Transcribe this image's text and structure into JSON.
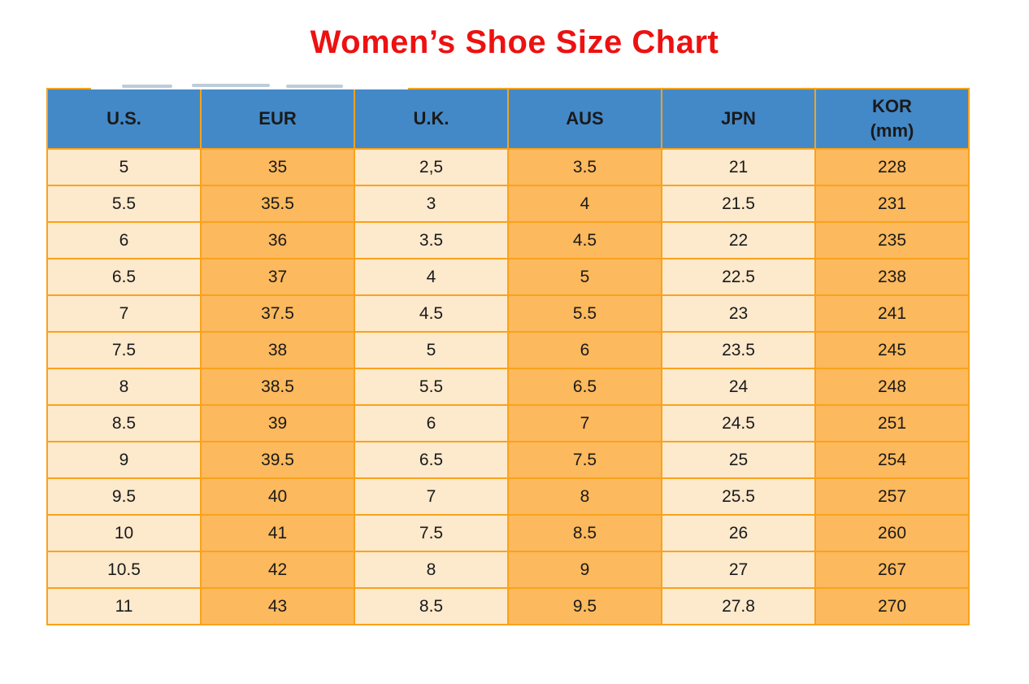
{
  "title": {
    "text": "Women’s Shoe Size Chart"
  },
  "colors": {
    "border": "#F9A21C",
    "header_bg": "#4389C8",
    "cell_light": "#FDE9CC",
    "cell_orange": "#FCB95D",
    "text": "#1A1A1A",
    "title": "#ED1111"
  },
  "table": {
    "columns": [
      {
        "key": "us",
        "label": "U.S."
      },
      {
        "key": "eur",
        "label": "EUR"
      },
      {
        "key": "uk",
        "label": "U.K."
      },
      {
        "key": "aus",
        "label": "AUS"
      },
      {
        "key": "jpn",
        "label": "JPN"
      },
      {
        "key": "kor",
        "label": "KOR",
        "sublabel": "(mm)"
      }
    ],
    "rows": [
      [
        "5",
        "35",
        "2,5",
        "3.5",
        "21",
        "228"
      ],
      [
        "5.5",
        "35.5",
        "3",
        "4",
        "21.5",
        "231"
      ],
      [
        "6",
        "36",
        "3.5",
        "4.5",
        "22",
        "235"
      ],
      [
        "6.5",
        "37",
        "4",
        "5",
        "22.5",
        "238"
      ],
      [
        "7",
        "37.5",
        "4.5",
        "5.5",
        "23",
        "241"
      ],
      [
        "7.5",
        "38",
        "5",
        "6",
        "23.5",
        "245"
      ],
      [
        "8",
        "38.5",
        "5.5",
        "6.5",
        "24",
        "248"
      ],
      [
        "8.5",
        "39",
        "6",
        "7",
        "24.5",
        "251"
      ],
      [
        "9",
        "39.5",
        "6.5",
        "7.5",
        "25",
        "254"
      ],
      [
        "9.5",
        "40",
        "7",
        "8",
        "25.5",
        "257"
      ],
      [
        "10",
        "41",
        "7.5",
        "8.5",
        "26",
        "260"
      ],
      [
        "10.5",
        "42",
        "8",
        "9",
        "27",
        "267"
      ],
      [
        "11",
        "43",
        "8.5",
        "9.5",
        "27.8",
        "270"
      ]
    ]
  },
  "chart_data": {
    "type": "table",
    "title": "Women’s Shoe Size Chart",
    "columns": [
      "U.S.",
      "EUR",
      "U.K.",
      "AUS",
      "JPN",
      "KOR (mm)"
    ],
    "rows": [
      [
        "5",
        "35",
        "2,5",
        "3.5",
        "21",
        "228"
      ],
      [
        "5.5",
        "35.5",
        "3",
        "4",
        "21.5",
        "231"
      ],
      [
        "6",
        "36",
        "3.5",
        "4.5",
        "22",
        "235"
      ],
      [
        "6.5",
        "37",
        "4",
        "5",
        "22.5",
        "238"
      ],
      [
        "7",
        "37.5",
        "4.5",
        "5.5",
        "23",
        "241"
      ],
      [
        "7.5",
        "38",
        "5",
        "6",
        "23.5",
        "245"
      ],
      [
        "8",
        "38.5",
        "5.5",
        "6.5",
        "24",
        "248"
      ],
      [
        "8.5",
        "39",
        "6",
        "7",
        "24.5",
        "251"
      ],
      [
        "9",
        "39.5",
        "6.5",
        "7.5",
        "25",
        "254"
      ],
      [
        "9.5",
        "40",
        "7",
        "8",
        "25.5",
        "257"
      ],
      [
        "10",
        "41",
        "7.5",
        "8.5",
        "26",
        "260"
      ],
      [
        "10.5",
        "42",
        "8",
        "9",
        "27",
        "267"
      ],
      [
        "11",
        "43",
        "8.5",
        "9.5",
        "27.8",
        "270"
      ]
    ],
    "layout": {
      "header_background": "#4389C8",
      "column_fill_pattern": [
        "#FDE9CC",
        "#FCB95D",
        "#FDE9CC",
        "#FCB95D",
        "#FDE9CC",
        "#FCB95D"
      ],
      "grid": true,
      "grid_color": "#F9A21C"
    }
  }
}
